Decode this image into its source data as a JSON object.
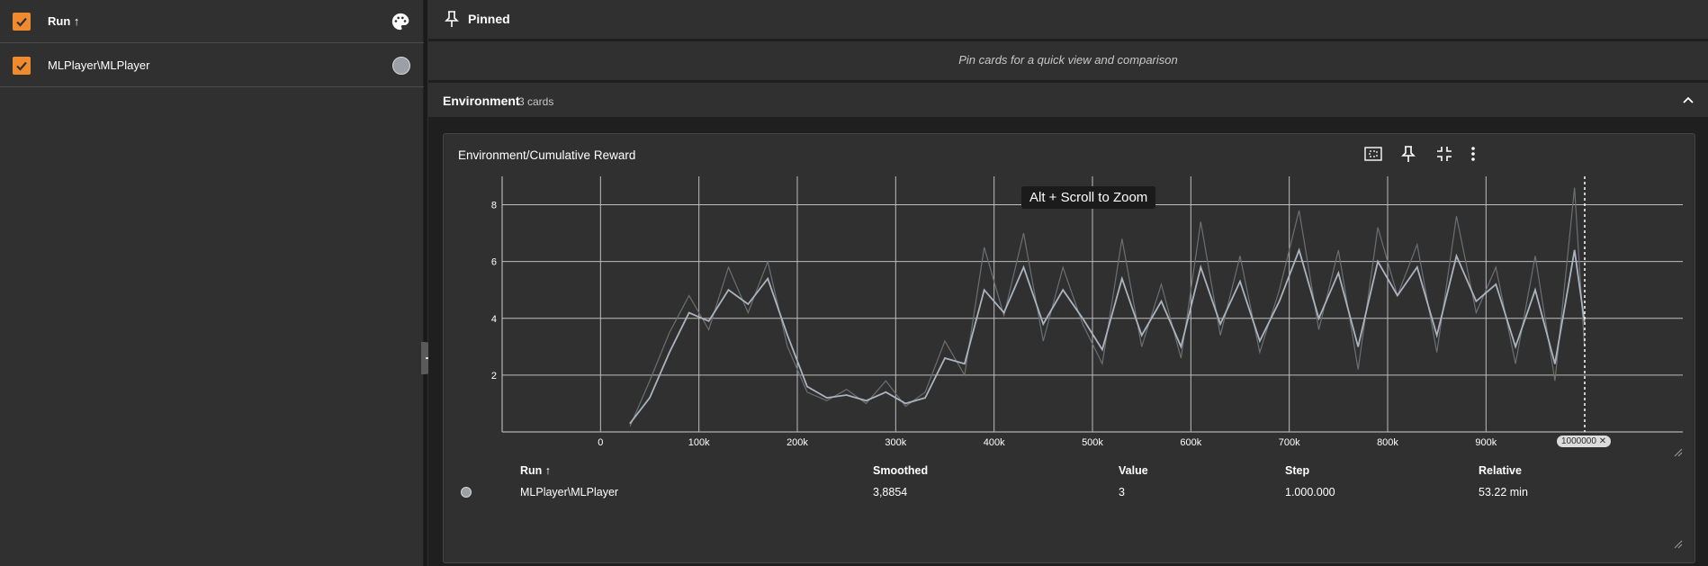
{
  "runs_panel": {
    "header_label": "Run ↑",
    "runs": [
      {
        "label": "MLPlayer\\MLPlayer",
        "color": "#9aa0a6",
        "checked": true
      }
    ],
    "checkbox_color": "#ef8a2e"
  },
  "pinned": {
    "title": "Pinned",
    "hint": "Pin cards for a quick view and comparison"
  },
  "group": {
    "title": "Environment",
    "count": "3 cards"
  },
  "card": {
    "title": "Environment/Cumulative Reward",
    "zoom_tooltip": "Alt + Scroll to Zoom",
    "step_badge": "1000000 ✕",
    "icons": [
      "fit-domain-icon",
      "pin-icon",
      "collapse-icon",
      "more-vert-icon"
    ]
  },
  "table": {
    "headers": {
      "run": "Run ↑",
      "smoothed": "Smoothed",
      "value": "Value",
      "step": "Step",
      "relative": "Relative"
    },
    "rows": [
      {
        "run": "MLPlayer\\MLPlayer",
        "smoothed": "3,8854",
        "value": "3",
        "step": "1.000.000",
        "relative": "53.22 min"
      }
    ]
  },
  "chart_data": {
    "type": "line",
    "title": "",
    "xlabel": "",
    "ylabel": "",
    "x_ticks": [
      "0",
      "100k",
      "200k",
      "300k",
      "400k",
      "500k",
      "600k",
      "700k",
      "800k",
      "900k"
    ],
    "x_tick_values": [
      0,
      100000,
      200000,
      300000,
      400000,
      500000,
      600000,
      700000,
      800000,
      900000
    ],
    "y_ticks": [
      "2",
      "4",
      "6",
      "8"
    ],
    "y_tick_values": [
      2,
      4,
      6,
      8
    ],
    "xlim": [
      -100000,
      1100000
    ],
    "ylim": [
      0,
      9
    ],
    "grid": true,
    "series": [
      {
        "raw_color": "#6b6f73",
        "smoothed_color": "#aab4c0",
        "x": [
          30000,
          50000,
          70000,
          90000,
          110000,
          130000,
          150000,
          170000,
          190000,
          210000,
          230000,
          250000,
          270000,
          290000,
          310000,
          330000,
          350000,
          370000,
          390000,
          410000,
          430000,
          450000,
          470000,
          490000,
          510000,
          530000,
          550000,
          570000,
          590000,
          610000,
          630000,
          650000,
          670000,
          690000,
          710000,
          730000,
          750000,
          770000,
          790000,
          810000,
          830000,
          850000,
          870000,
          890000,
          910000,
          930000,
          950000,
          970000,
          990000,
          1000000
        ],
        "raw": [
          0.2,
          1.8,
          3.5,
          4.8,
          3.6,
          5.8,
          4.2,
          6.0,
          3.0,
          1.4,
          1.1,
          1.5,
          1.0,
          1.8,
          0.9,
          1.4,
          3.2,
          2.0,
          6.5,
          4.1,
          7.0,
          3.2,
          5.8,
          3.8,
          2.4,
          6.8,
          3.0,
          5.2,
          2.6,
          7.4,
          3.4,
          6.2,
          2.8,
          5.0,
          7.8,
          3.6,
          6.4,
          2.2,
          7.2,
          4.8,
          6.6,
          2.8,
          7.6,
          4.2,
          5.8,
          2.4,
          6.2,
          1.8,
          8.6,
          3
        ],
        "smoothed": [
          0.3,
          1.2,
          2.8,
          4.2,
          3.9,
          5.0,
          4.5,
          5.4,
          3.4,
          1.6,
          1.2,
          1.3,
          1.1,
          1.4,
          1.0,
          1.2,
          2.6,
          2.4,
          5.0,
          4.2,
          5.8,
          3.8,
          5.0,
          4.0,
          2.9,
          5.4,
          3.4,
          4.6,
          3.0,
          5.8,
          3.8,
          5.3,
          3.2,
          4.6,
          6.4,
          4.0,
          5.6,
          3.0,
          6.0,
          4.8,
          5.8,
          3.4,
          6.2,
          4.6,
          5.2,
          3.0,
          5.0,
          2.4,
          6.4,
          3.8854
        ]
      }
    ],
    "cursor_step": 1000000
  }
}
